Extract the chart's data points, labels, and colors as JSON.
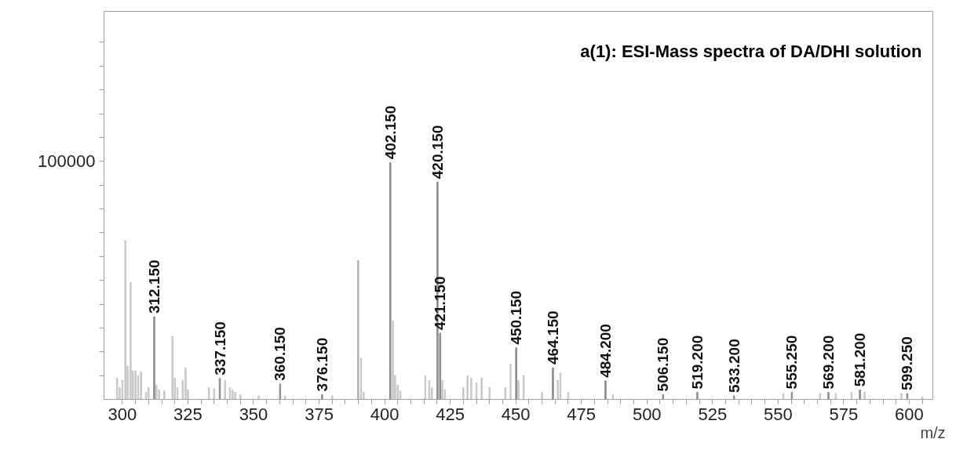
{
  "chart_data": {
    "type": "bar",
    "title": "a(1): ESI-Mass spectra of DA/DHI solution",
    "xlabel": "m/z",
    "x": [
      298,
      299,
      300,
      301.15,
      302,
      303.15,
      304,
      305,
      306,
      307.1,
      309,
      310,
      312.15,
      313,
      314,
      316,
      319.1,
      320,
      321,
      323,
      324.1,
      325,
      333,
      335,
      337.15,
      339.15,
      341,
      342,
      343,
      345,
      352,
      360.15,
      362,
      376.15,
      380,
      389.9,
      391,
      392,
      402.15,
      403.15,
      404,
      405,
      406,
      415.5,
      417,
      418,
      420.15,
      421.15,
      422,
      423,
      430,
      431.6,
      433,
      435,
      437,
      440,
      446,
      448,
      450.15,
      451,
      453,
      460,
      464.15,
      466,
      467,
      470,
      484.2,
      487,
      506.15,
      519.2,
      533.2,
      552,
      555.25,
      566,
      569.2,
      572,
      578,
      581.2,
      583,
      597,
      599.25,
      605
    ],
    "series": [
      {
        "values": [
          9000,
          5000,
          8000,
          66800,
          14000,
          49100,
          12000,
          12000,
          10000,
          11600,
          3000,
          5000,
          34700,
          6000,
          4000,
          3500,
          26500,
          9000,
          5000,
          8000,
          13300,
          4000,
          5000,
          4500,
          8800,
          8000,
          5000,
          4000,
          3000,
          2000,
          1500,
          6500,
          1500,
          2000,
          1500,
          58300,
          17200,
          3000,
          99500,
          33000,
          10000,
          6000,
          3500,
          10000,
          8000,
          5000,
          91300,
          27800,
          8000,
          4000,
          5000,
          10000,
          9000,
          7000,
          9000,
          5000,
          5000,
          15000,
          21700,
          8000,
          10000,
          3000,
          13300,
          8000,
          11100,
          3000,
          7800,
          2000,
          2000,
          3000,
          1500,
          2500,
          3000,
          2500,
          3000,
          2500,
          3000,
          4000,
          3000,
          2500,
          2500,
          1000
        ],
        "colors": [
          "#c8c8c8",
          "#c8c8c8",
          "#c8c8c8",
          "#c8c8c8",
          "#c8c8c8",
          "#c8c8c8",
          "#c8c8c8",
          "#c8c8c8",
          "#c8c8c8",
          "#c8c8c8",
          "#c8c8c8",
          "#c8c8c8",
          "#8c8c8c",
          "#c8c8c8",
          "#c8c8c8",
          "#c8c8c8",
          "#c8c8c8",
          "#c8c8c8",
          "#c8c8c8",
          "#c8c8c8",
          "#c8c8c8",
          "#c8c8c8",
          "#c8c8c8",
          "#c8c8c8",
          "#8c8c8c",
          "#c8c8c8",
          "#c8c8c8",
          "#c8c8c8",
          "#c8c8c8",
          "#c8c8c8",
          "#c8c8c8",
          "#8c8c8c",
          "#c8c8c8",
          "#8c8c8c",
          "#c8c8c8",
          "#b4b4b4",
          "#c8c8c8",
          "#c8c8c8",
          "#8c8c8c",
          "#c8c8c8",
          "#c8c8c8",
          "#c8c8c8",
          "#c8c8c8",
          "#c8c8c8",
          "#c8c8c8",
          "#c8c8c8",
          "#8c8c8c",
          "#8c8c8c",
          "#c8c8c8",
          "#c8c8c8",
          "#c8c8c8",
          "#c8c8c8",
          "#c8c8c8",
          "#c8c8c8",
          "#c8c8c8",
          "#c8c8c8",
          "#c8c8c8",
          "#c8c8c8",
          "#8c8c8c",
          "#c8c8c8",
          "#c8c8c8",
          "#c8c8c8",
          "#8c8c8c",
          "#c8c8c8",
          "#c8c8c8",
          "#c8c8c8",
          "#8c8c8c",
          "#c8c8c8",
          "#8c8c8c",
          "#8c8c8c",
          "#8c8c8c",
          "#c8c8c8",
          "#8c8c8c",
          "#c8c8c8",
          "#8c8c8c",
          "#c8c8c8",
          "#c8c8c8",
          "#8c8c8c",
          "#c8c8c8",
          "#c8c8c8",
          "#8c8c8c",
          "#c8c8c8"
        ]
      }
    ],
    "xlim": [
      293,
      609
    ],
    "ylim": [
      0,
      163000
    ],
    "xticks": [
      300,
      {
        "value": 305,
        "label": null
      },
      {
        "value": 310,
        "label": null
      },
      {
        "value": 315,
        "label": null
      },
      {
        "value": 320,
        "label": null
      },
      325,
      {
        "value": 330,
        "label": null
      },
      {
        "value": 335,
        "label": null
      },
      {
        "value": 340,
        "label": null
      },
      {
        "value": 345,
        "label": null
      },
      350,
      {
        "value": 355,
        "label": null
      },
      {
        "value": 360,
        "label": null
      },
      {
        "value": 365,
        "label": null
      },
      {
        "value": 370,
        "label": null
      },
      375,
      {
        "value": 380,
        "label": null
      },
      {
        "value": 385,
        "label": null
      },
      {
        "value": 390,
        "label": null
      },
      {
        "value": 395,
        "label": null
      },
      400,
      {
        "value": 405,
        "label": null
      },
      {
        "value": 410,
        "label": null
      },
      {
        "value": 415,
        "label": null
      },
      {
        "value": 420,
        "label": null
      },
      425,
      {
        "value": 430,
        "label": null
      },
      {
        "value": 435,
        "label": null
      },
      {
        "value": 440,
        "label": null
      },
      {
        "value": 445,
        "label": null
      },
      450,
      {
        "value": 455,
        "label": null
      },
      {
        "value": 460,
        "label": null
      },
      {
        "value": 465,
        "label": null
      },
      {
        "value": 470,
        "label": null
      },
      475,
      {
        "value": 480,
        "label": null
      },
      {
        "value": 485,
        "label": null
      },
      {
        "value": 490,
        "label": null
      },
      {
        "value": 495,
        "label": null
      },
      500,
      {
        "value": 505,
        "label": null
      },
      {
        "value": 510,
        "label": null
      },
      {
        "value": 515,
        "label": null
      },
      {
        "value": 520,
        "label": null
      },
      525,
      {
        "value": 530,
        "label": null
      },
      {
        "value": 535,
        "label": null
      },
      {
        "value": 540,
        "label": null
      },
      {
        "value": 545,
        "label": null
      },
      550,
      {
        "value": 555,
        "label": null
      },
      {
        "value": 560,
        "label": null
      },
      {
        "value": 565,
        "label": null
      },
      {
        "value": 570,
        "label": null
      },
      575,
      {
        "value": 580,
        "label": null
      },
      {
        "value": 585,
        "label": null
      },
      {
        "value": 590,
        "label": null
      },
      {
        "value": 595,
        "label": null
      },
      600,
      {
        "value": 605,
        "label": null
      }
    ],
    "yticks": [
      {
        "value": 10000,
        "label": null
      },
      {
        "value": 20000,
        "label": null
      },
      {
        "value": 30000,
        "label": null
      },
      {
        "value": 40000,
        "label": null
      },
      {
        "value": 50000,
        "label": null
      },
      {
        "value": 60000,
        "label": null
      },
      {
        "value": 70000,
        "label": null
      },
      {
        "value": 80000,
        "label": null
      },
      {
        "value": 90000,
        "label": null
      },
      100000,
      {
        "value": 110000,
        "label": null
      },
      {
        "value": 120000,
        "label": null
      },
      {
        "value": 130000,
        "label": null
      },
      {
        "value": 140000,
        "label": null
      },
      {
        "value": 150000,
        "label": null
      }
    ],
    "annotations": [
      {
        "text": "312.150",
        "x": 312.15,
        "y": 34700
      },
      {
        "text": "337.150",
        "x": 337.15,
        "y": 8800
      },
      {
        "text": "360.150",
        "x": 360.15,
        "y": 6500
      },
      {
        "text": "376.150",
        "x": 376.15,
        "y": 2000
      },
      {
        "text": "402.150",
        "x": 402.15,
        "y": 99500
      },
      {
        "text": "420.150",
        "x": 420.15,
        "y": 91300
      },
      {
        "text": "421.150",
        "x": 421.15,
        "y": 27800
      },
      {
        "text": "450.150",
        "x": 450.15,
        "y": 21700
      },
      {
        "text": "464.150",
        "x": 464.15,
        "y": 13300
      },
      {
        "text": "484.200",
        "x": 484.2,
        "y": 7800
      },
      {
        "text": "506.150",
        "x": 506.15,
        "y": 2000
      },
      {
        "text": "519.200",
        "x": 519.2,
        "y": 3000
      },
      {
        "text": "533.200",
        "x": 533.2,
        "y": 1500
      },
      {
        "text": "555.250",
        "x": 555.25,
        "y": 3000
      },
      {
        "text": "569.200",
        "x": 569.2,
        "y": 3000
      },
      {
        "text": "581.200",
        "x": 581.2,
        "y": 4000
      },
      {
        "text": "599.250",
        "x": 599.25,
        "y": 2500
      }
    ]
  }
}
